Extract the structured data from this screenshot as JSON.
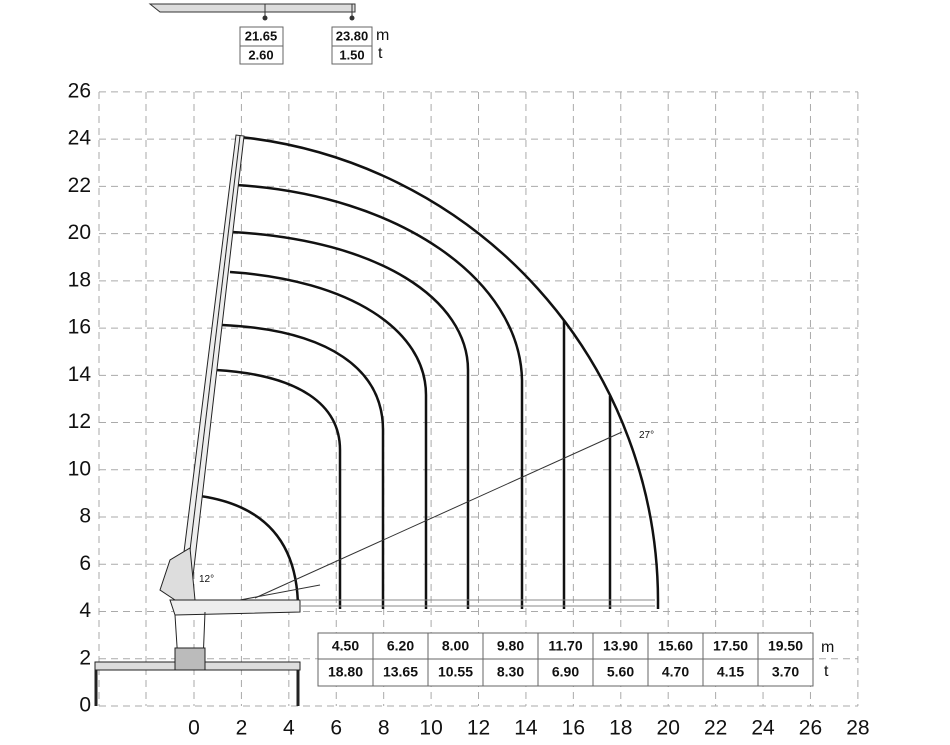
{
  "jib_table": {
    "columns": [
      {
        "reach": "21.65",
        "load": "2.60"
      },
      {
        "reach": "23.80",
        "load": "1.50"
      }
    ],
    "units": [
      "m",
      "t"
    ]
  },
  "load_table": {
    "reach": [
      "4.50",
      "6.20",
      "8.00",
      "9.80",
      "11.70",
      "13.90",
      "15.60",
      "17.50",
      "19.50"
    ],
    "load": [
      "18.80",
      "13.65",
      "10.55",
      "8.30",
      "6.90",
      "5.60",
      "4.70",
      "4.15",
      "3.70"
    ],
    "units": [
      "m",
      "t"
    ]
  },
  "axes": {
    "xticks": [
      0,
      2,
      4,
      6,
      8,
      10,
      12,
      14,
      16,
      18,
      20,
      22,
      24,
      26,
      28
    ],
    "yticks": [
      0,
      2,
      4,
      6,
      8,
      10,
      12,
      14,
      16,
      18,
      20,
      22,
      24,
      26
    ]
  },
  "angles": [
    "12°",
    "27°"
  ]
}
